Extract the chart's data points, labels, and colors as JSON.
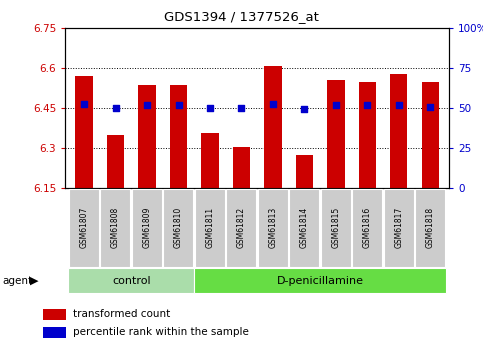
{
  "title": "GDS1394 / 1377526_at",
  "samples": [
    "GSM61807",
    "GSM61808",
    "GSM61809",
    "GSM61810",
    "GSM61811",
    "GSM61812",
    "GSM61813",
    "GSM61814",
    "GSM61815",
    "GSM61816",
    "GSM61817",
    "GSM61818"
  ],
  "bar_values": [
    6.57,
    6.35,
    6.535,
    6.535,
    6.355,
    6.302,
    6.605,
    6.272,
    6.555,
    6.545,
    6.578,
    6.545
  ],
  "percentile_values": [
    6.465,
    6.45,
    6.462,
    6.46,
    6.45,
    6.45,
    6.465,
    6.444,
    6.46,
    6.46,
    6.46,
    6.452
  ],
  "bar_color": "#cc0000",
  "dot_color": "#0000cc",
  "ymin": 6.15,
  "ymax": 6.75,
  "yticks": [
    6.15,
    6.3,
    6.45,
    6.6,
    6.75
  ],
  "dotgrid_vals": [
    6.3,
    6.45,
    6.6
  ],
  "y2min": 0,
  "y2max": 100,
  "y2ticks": [
    0,
    25,
    50,
    75,
    100
  ],
  "y2ticklabels": [
    "0",
    "25",
    "50",
    "75",
    "100%"
  ],
  "groups": [
    {
      "label": "control",
      "start": 0,
      "end": 3,
      "color": "#aaddaa"
    },
    {
      "label": "D-penicillamine",
      "start": 4,
      "end": 11,
      "color": "#66dd44"
    }
  ],
  "agent_label": "agent",
  "legend_bar": "transformed count",
  "legend_dot": "percentile rank within the sample",
  "bar_width": 0.55,
  "label_bg": "#cccccc",
  "fig_w": 4.83,
  "fig_h": 3.45,
  "dpi": 100
}
